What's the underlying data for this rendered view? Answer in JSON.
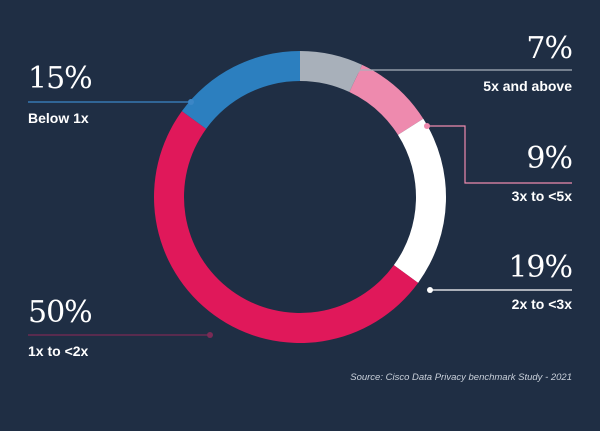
{
  "chart_data": {
    "type": "pie",
    "variant": "donut",
    "title": "",
    "categories": [
      "5x and above",
      "3x to <5x",
      "2x to <3x",
      "1x to <2x",
      "Below 1x"
    ],
    "values": [
      7,
      9,
      19,
      50,
      15
    ],
    "value_labels": [
      "7%",
      "9%",
      "19%",
      "50%",
      "15%"
    ],
    "colors": [
      "#a8b0ba",
      "#ee8aae",
      "#ffffff",
      "#e0185a",
      "#2c7fbf"
    ],
    "start_angle_deg": 0,
    "direction": "clockwise",
    "legend": "callouts",
    "source": "Source: Cisco Data Privacy benchmark Study - 2021"
  },
  "colors": {
    "background": "#1f2e44",
    "leader_line_blue": "#3b86c6",
    "leader_line_grey": "#a8b0ba",
    "leader_line_pink": "#ee8aae",
    "leader_line_white": "#ffffff",
    "leader_line_red": "#7a2a55"
  }
}
